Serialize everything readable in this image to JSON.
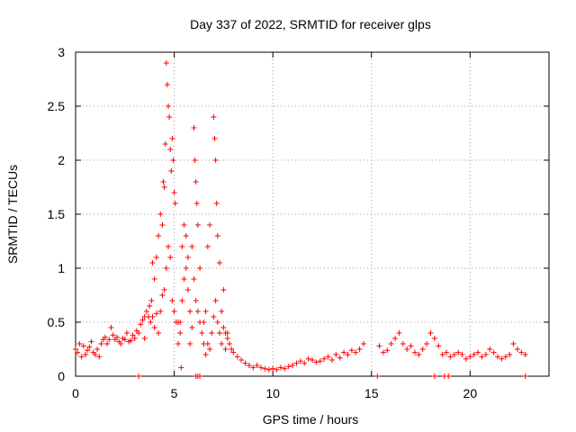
{
  "chart_data": {
    "type": "scatter",
    "title": "Day 337 of 2022, SRMTID for receiver glps",
    "xlabel": "GPS time / hours",
    "ylabel": "SRMTID / TECUs",
    "xlim": [
      0,
      24
    ],
    "ylim": [
      0,
      3
    ],
    "x_ticks": [
      0,
      5,
      10,
      15,
      20
    ],
    "y_ticks": [
      0,
      0.5,
      1,
      1.5,
      2,
      2.5,
      3
    ],
    "x_tick_labels": [
      "0",
      "5",
      "10",
      "15",
      "20"
    ],
    "y_tick_labels": [
      "0",
      "0.5",
      "1",
      "1.5",
      "2",
      "2.5",
      "3"
    ],
    "grid": true,
    "marker": "+",
    "series": [
      {
        "name": "SRMTID",
        "color": "#ff0000",
        "x": [
          0.0,
          0.1,
          0.2,
          0.3,
          0.4,
          0.5,
          0.6,
          0.7,
          0.8,
          0.9,
          1.0,
          1.1,
          1.2,
          1.3,
          1.4,
          1.5,
          1.6,
          1.7,
          1.8,
          1.9,
          2.0,
          2.1,
          2.2,
          2.3,
          2.4,
          2.5,
          2.6,
          2.7,
          2.8,
          2.9,
          3.0,
          3.1,
          3.2,
          3.3,
          3.4,
          3.5,
          3.6,
          3.7,
          3.8,
          3.9,
          4.0,
          4.1,
          4.2,
          4.3,
          4.4,
          4.5,
          4.6,
          4.7,
          4.8,
          4.9,
          5.0,
          5.1,
          5.2,
          5.3,
          5.4,
          5.5,
          5.6,
          5.7,
          5.8,
          5.9,
          6.0,
          6.1,
          6.2,
          6.3,
          6.4,
          6.5,
          6.6,
          6.7,
          6.8,
          6.9,
          7.0,
          7.1,
          7.2,
          7.3,
          7.4,
          7.5,
          7.6,
          7.7,
          7.8,
          7.9,
          8.0,
          8.2,
          8.4,
          8.6,
          8.8,
          9.0,
          9.2,
          9.4,
          9.6,
          9.8,
          10.0,
          10.2,
          10.4,
          10.6,
          10.8,
          11.0,
          11.2,
          11.4,
          11.6,
          11.8,
          12.0,
          12.2,
          12.4,
          12.6,
          12.8,
          13.0,
          13.2,
          13.4,
          13.6,
          13.8,
          14.0,
          14.2,
          14.4,
          14.6,
          15.4,
          15.6,
          15.8,
          16.0,
          16.2,
          16.4,
          16.6,
          16.8,
          17.0,
          17.2,
          17.4,
          17.6,
          17.8,
          18.0,
          18.2,
          18.4,
          18.6,
          18.8,
          19.0,
          19.2,
          19.4,
          19.6,
          19.8,
          20.0,
          20.2,
          20.4,
          20.6,
          20.8,
          21.0,
          21.2,
          21.4,
          21.6,
          21.8,
          22.0,
          22.2,
          22.4,
          22.6,
          22.8,
          4.6,
          4.65,
          4.7,
          4.75,
          4.8,
          4.85,
          4.9,
          4.95,
          5.0,
          5.05,
          4.5,
          4.4,
          4.3,
          4.2,
          4.1,
          4.0,
          3.9,
          6.0,
          6.05,
          6.1,
          6.15,
          6.2,
          6.3,
          7.0,
          7.05,
          7.1,
          7.15,
          7.2,
          7.3,
          6.8,
          6.7,
          5.6,
          5.5,
          5.4,
          5.7,
          4.55,
          4.45,
          3.85,
          3.75,
          3.5,
          5.2,
          5.3,
          5.8,
          5.9,
          6.5,
          6.6,
          7.4,
          7.5,
          7.6,
          7.7,
          3.2,
          6.1,
          6.2,
          6.3,
          15.3,
          18.2,
          18.7,
          18.9,
          22.8,
          5.35
        ],
        "y": [
          0.25,
          0.22,
          0.3,
          0.18,
          0.28,
          0.2,
          0.24,
          0.27,
          0.32,
          0.22,
          0.2,
          0.25,
          0.18,
          0.3,
          0.34,
          0.36,
          0.3,
          0.34,
          0.45,
          0.38,
          0.34,
          0.36,
          0.32,
          0.3,
          0.35,
          0.34,
          0.4,
          0.32,
          0.33,
          0.38,
          0.35,
          0.42,
          0.4,
          0.48,
          0.52,
          0.55,
          0.6,
          0.55,
          0.5,
          0.55,
          0.45,
          0.58,
          0.4,
          0.6,
          0.75,
          0.8,
          1.0,
          1.2,
          1.1,
          0.7,
          0.6,
          0.5,
          0.3,
          0.5,
          0.7,
          0.9,
          1.0,
          0.8,
          0.6,
          1.2,
          0.9,
          0.7,
          0.6,
          0.5,
          0.4,
          0.5,
          0.6,
          0.3,
          0.25,
          0.4,
          0.55,
          0.7,
          0.5,
          0.4,
          0.6,
          0.8,
          0.4,
          0.35,
          0.3,
          0.25,
          0.22,
          0.18,
          0.15,
          0.12,
          0.1,
          0.08,
          0.1,
          0.08,
          0.07,
          0.06,
          0.07,
          0.06,
          0.08,
          0.07,
          0.09,
          0.1,
          0.12,
          0.14,
          0.12,
          0.16,
          0.15,
          0.13,
          0.14,
          0.16,
          0.18,
          0.15,
          0.2,
          0.17,
          0.22,
          0.2,
          0.24,
          0.22,
          0.25,
          0.3,
          0.28,
          0.22,
          0.24,
          0.3,
          0.35,
          0.4,
          0.3,
          0.25,
          0.28,
          0.22,
          0.2,
          0.25,
          0.3,
          0.4,
          0.35,
          0.28,
          0.2,
          0.22,
          0.18,
          0.2,
          0.22,
          0.2,
          0.16,
          0.18,
          0.2,
          0.22,
          0.18,
          0.2,
          0.25,
          0.22,
          0.18,
          0.16,
          0.18,
          0.2,
          0.3,
          0.25,
          0.22,
          0.2,
          2.9,
          2.7,
          2.5,
          2.4,
          2.1,
          1.9,
          2.2,
          2.0,
          1.7,
          1.6,
          1.75,
          1.4,
          1.5,
          1.3,
          1.1,
          0.9,
          1.05,
          2.3,
          2.0,
          1.8,
          1.6,
          1.4,
          1.0,
          2.4,
          2.2,
          2.0,
          1.6,
          1.3,
          1.05,
          1.4,
          1.2,
          1.3,
          1.4,
          1.2,
          1.1,
          2.15,
          1.8,
          0.7,
          0.65,
          0.35,
          0.5,
          0.4,
          0.3,
          0.45,
          0.3,
          0.2,
          0.3,
          0.45,
          0.25,
          0.4,
          0.0,
          0.0,
          0.0,
          0.0,
          0.0,
          0.0,
          0.0,
          0.0,
          0.0,
          0.08
        ]
      }
    ]
  }
}
